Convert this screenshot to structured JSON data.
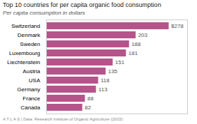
{
  "chart_data": {
    "type": "bar",
    "orientation": "horizontal",
    "title": "Top 10 countries for per capita organic food consumption",
    "subtitle": "Per capita consumption in dollars",
    "categories": [
      "Switzerland",
      "Denmark",
      "Sweden",
      "Luxembourg",
      "Liechtenstein",
      "Austria",
      "USA",
      "Germany",
      "France",
      "Canada"
    ],
    "values": [
      278,
      203,
      188,
      181,
      151,
      135,
      118,
      113,
      88,
      82
    ],
    "value_labels": [
      "$278",
      "203",
      "188",
      "181",
      "151",
      "135",
      "118",
      "113",
      "88",
      "82"
    ],
    "data_labels": true,
    "color": "#b5548a",
    "xlim": [
      0,
      320
    ],
    "tick_labels": "y",
    "grid": false,
    "annotations": [
      "A T L A S   |   Data: Research Institute of Organic Agriculture (2015)"
    ]
  }
}
